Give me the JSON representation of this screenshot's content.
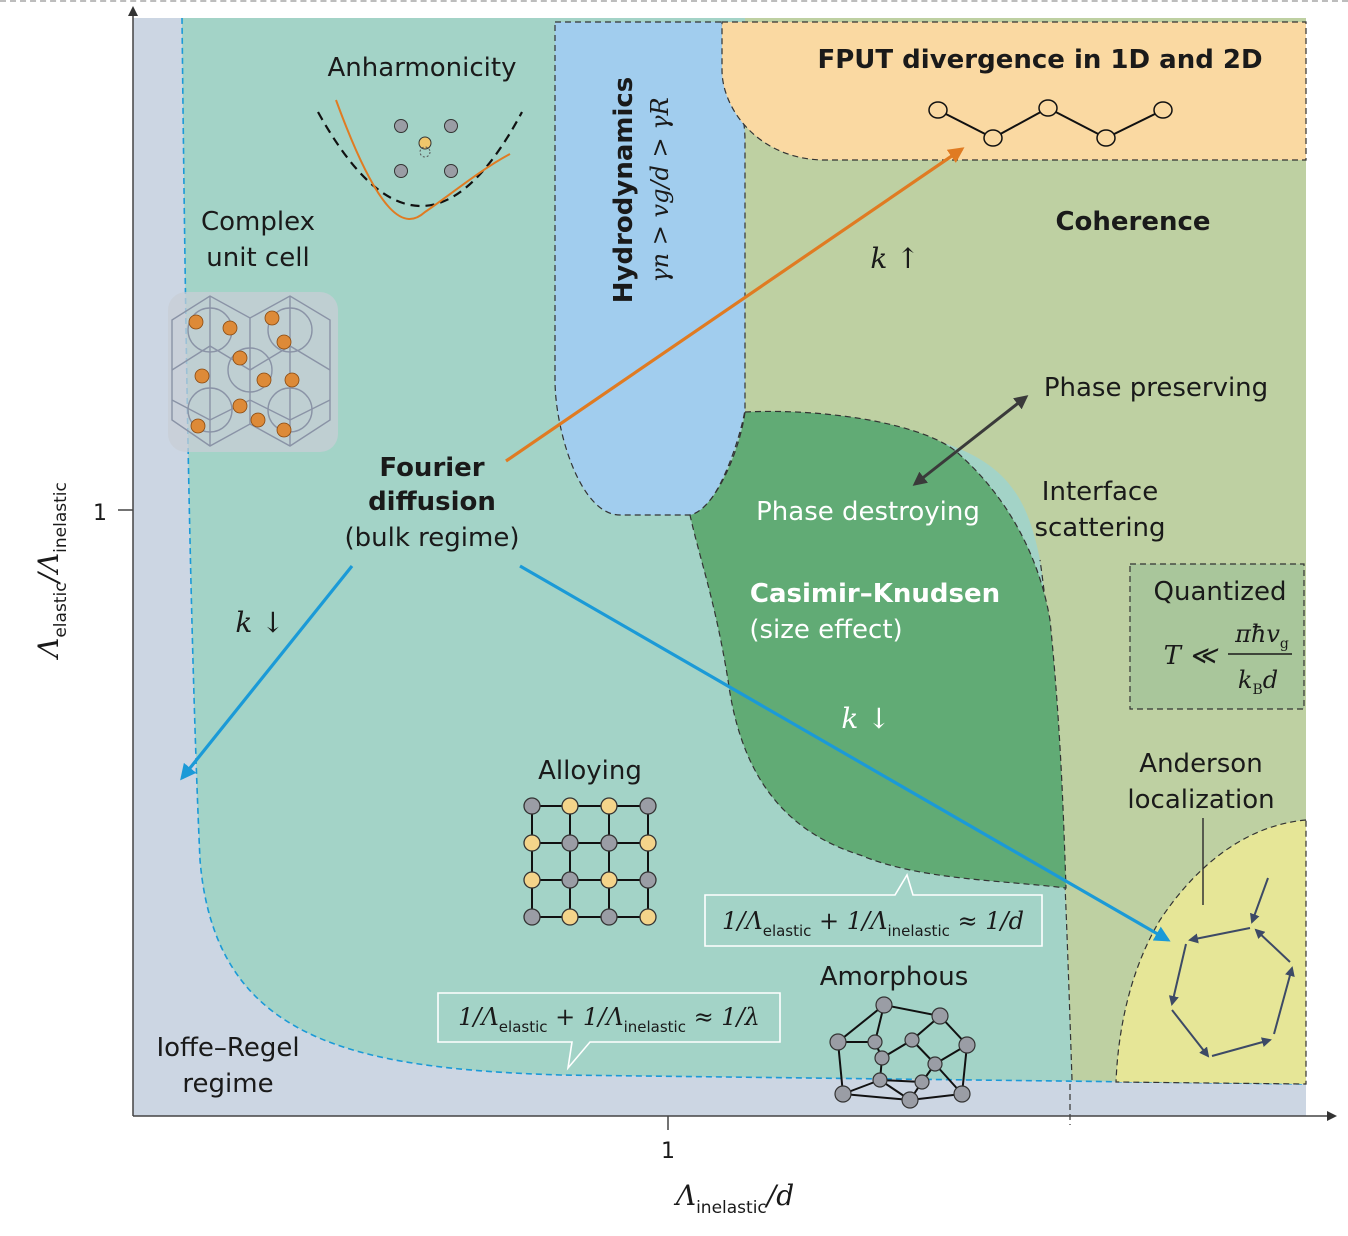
{
  "axes": {
    "y_label": "Λ",
    "y_sub1": "elastic",
    "y_sep": "/Λ",
    "y_sub2": "inelastic",
    "y_tick": "1",
    "x_label": "Λ",
    "x_sub": "inelastic",
    "x_tail": "/d",
    "x_tick": "1"
  },
  "regions": {
    "anharmonicity": "Anharmonicity",
    "complex_line1": "Complex",
    "complex_line2": "unit cell",
    "hydro_title": "Hydrodynamics",
    "hydro_formula": "γn > vg/d > γR",
    "fput": "FPUT divergence in 1D and 2D",
    "coherence": "Coherence",
    "k_up": "k ↑",
    "phase_preserving": "Phase preserving",
    "phase_destroying": "Phase destroying",
    "interface_line1": "Interface",
    "interface_line2": "scattering",
    "fourier_line1": "Fourier",
    "fourier_line2": "diffusion",
    "fourier_line3": "(bulk regime)",
    "k_down_left": "k ↓",
    "casimir_title": "Casimir–Knudsen",
    "casimir_sub": "(size effect)",
    "k_down_mid": "k ↓",
    "quantized": "Quantized",
    "quantized_T": "T ≪",
    "quantized_num": "πħv",
    "quantized_num_sub": "g",
    "quantized_den": "k",
    "quantized_den_sub": "B",
    "quantized_den_tail": "d",
    "anderson_line1": "Anderson",
    "anderson_line2": "localization",
    "alloying": "Alloying",
    "amorphous": "Amorphous",
    "ioffe_line1": "Ioffe–Regel",
    "ioffe_line2": "regime",
    "box1": {
      "a": "1/Λ",
      "a_sub": "elastic",
      "b": " + 1/Λ",
      "b_sub": "inelastic",
      "c": " ≈ 1/d"
    },
    "box2": {
      "a": "1/Λ",
      "a_sub": "elastic",
      "b": " + 1/Λ",
      "b_sub": "inelastic",
      "c": " ≈ 1/λ"
    }
  },
  "colors": {
    "ioffe": "#ccd6e3",
    "fourier": "#a3d3c7",
    "coherence": "#bed0a2",
    "hydro": "#a1cdee",
    "fput": "#fad9a2",
    "casimir": "#61ab75",
    "anderson": "#e6e697",
    "quantized": "#a9c69b",
    "orange_arrow": "#e07b22",
    "blue_arrow": "#1b9ad7"
  }
}
